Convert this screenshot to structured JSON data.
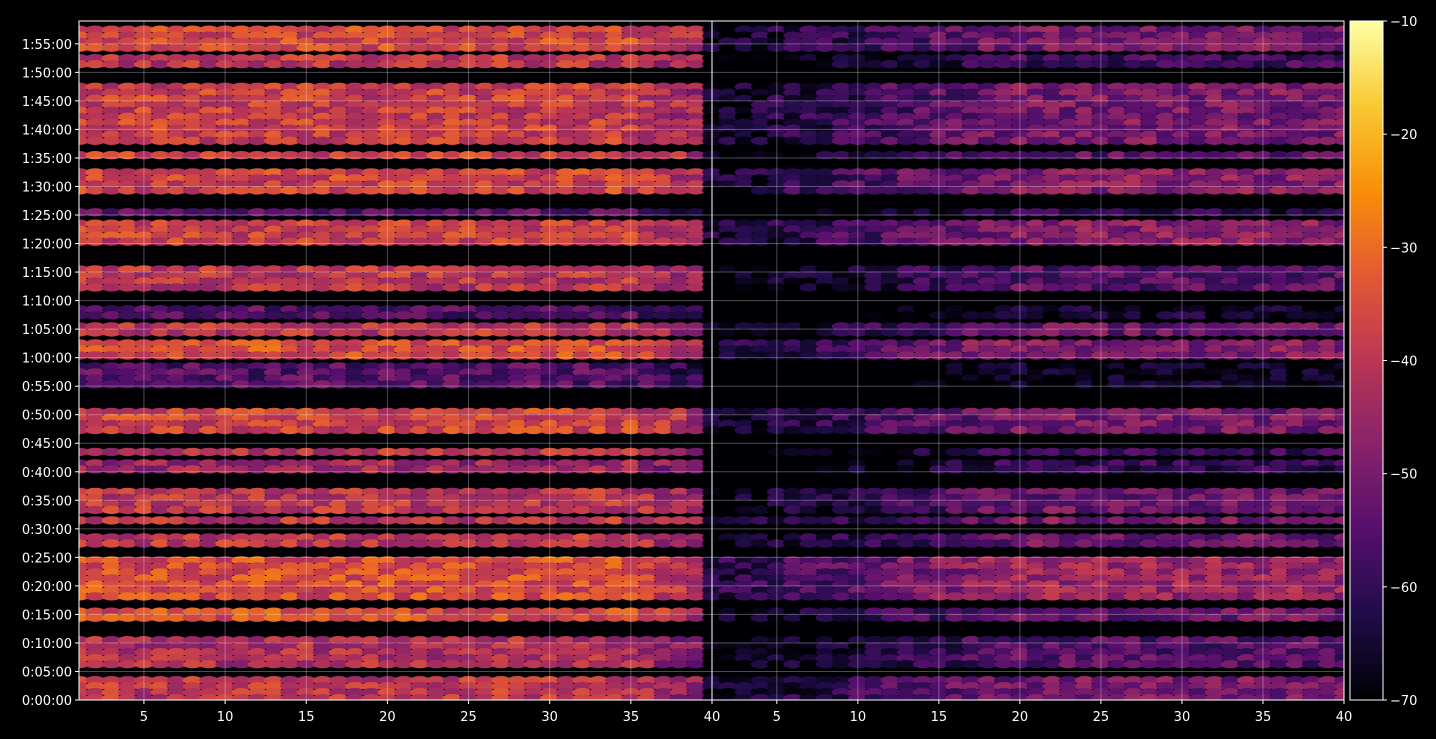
{
  "chart_data": {
    "type": "heatmap",
    "title": "",
    "xlabel": "",
    "ylabel": "",
    "background": "#000000",
    "colormap": "inferno",
    "grid": true,
    "panels": [
      {
        "name": "",
        "x_range": [
          1,
          40
        ],
        "x_ticks": [
          "5",
          "10",
          "15",
          "20",
          "25",
          "30",
          "35",
          "40"
        ]
      },
      {
        "name": "",
        "x_range": [
          1,
          40
        ],
        "x_ticks": [
          "5",
          "10",
          "15",
          "20",
          "25",
          "30",
          "35",
          "40"
        ]
      }
    ],
    "x_tick_values": [
      5,
      10,
      15,
      20,
      25,
      30,
      35,
      40
    ],
    "y_range_seconds": [
      0,
      7140
    ],
    "y_ticks": [
      "0:00:00",
      "0:05:00",
      "0:10:00",
      "0:15:00",
      "0:20:00",
      "0:25:00",
      "0:30:00",
      "0:35:00",
      "0:40:00",
      "0:45:00",
      "0:50:00",
      "0:55:00",
      "1:00:00",
      "1:05:00",
      "1:10:00",
      "1:15:00",
      "1:20:00",
      "1:25:00",
      "1:30:00",
      "1:35:00",
      "1:40:00",
      "1:45:00",
      "1:50:00",
      "1:55:00"
    ],
    "colorbar": {
      "min": -70,
      "max": -10,
      "ticks": [
        "−10",
        "−20",
        "−30",
        "−40",
        "−50",
        "−60",
        "−70"
      ],
      "tick_values": [
        -10,
        -20,
        -30,
        -40,
        -50,
        -60,
        -70
      ]
    },
    "time_bands": [
      {
        "start": "0:00:00",
        "end": "0:04:00",
        "left_level": -40,
        "right_level": -50
      },
      {
        "start": "0:06:00",
        "end": "0:11:00",
        "left_level": -42,
        "right_level": -55
      },
      {
        "start": "0:14:00",
        "end": "0:16:00",
        "left_level": -35,
        "right_level": -52
      },
      {
        "start": "0:18:00",
        "end": "0:25:00",
        "left_level": -35,
        "right_level": -45
      },
      {
        "start": "0:27:00",
        "end": "0:29:00",
        "left_level": -40,
        "right_level": -52
      },
      {
        "start": "0:31:00",
        "end": "0:32:00",
        "left_level": -40,
        "right_level": -50
      },
      {
        "start": "0:33:00",
        "end": "0:37:00",
        "left_level": -40,
        "right_level": -52
      },
      {
        "start": "0:40:00",
        "end": "0:42:00",
        "left_level": -45,
        "right_level": -60
      },
      {
        "start": "0:43:00",
        "end": "0:44:00",
        "left_level": -40,
        "right_level": -60
      },
      {
        "start": "0:47:00",
        "end": "0:51:00",
        "left_level": -37,
        "right_level": -50
      },
      {
        "start": "0:55:00",
        "end": "0:59:00",
        "left_level": -55,
        "right_level": -68
      },
      {
        "start": "1:00:00",
        "end": "1:03:00",
        "left_level": -35,
        "right_level": -48
      },
      {
        "start": "1:04:00",
        "end": "1:06:00",
        "left_level": -40,
        "right_level": -52
      },
      {
        "start": "1:07:00",
        "end": "1:09:00",
        "left_level": -55,
        "right_level": -66
      },
      {
        "start": "1:12:00",
        "end": "1:16:00",
        "left_level": -40,
        "right_level": -55
      },
      {
        "start": "1:20:00",
        "end": "1:24:00",
        "left_level": -38,
        "right_level": -48
      },
      {
        "start": "1:25:00",
        "end": "1:26:00",
        "left_level": -55,
        "right_level": -62
      },
      {
        "start": "1:29:00",
        "end": "1:33:00",
        "left_level": -37,
        "right_level": -48
      },
      {
        "start": "1:35:00",
        "end": "1:36:00",
        "left_level": -38,
        "right_level": -55
      },
      {
        "start": "1:38:00",
        "end": "1:48:00",
        "left_level": -38,
        "right_level": -50
      },
      {
        "start": "1:51:00",
        "end": "1:53:00",
        "left_level": -40,
        "right_level": -58
      },
      {
        "start": "1:54:00",
        "end": "1:58:00",
        "left_level": -36,
        "right_level": -50
      }
    ]
  }
}
